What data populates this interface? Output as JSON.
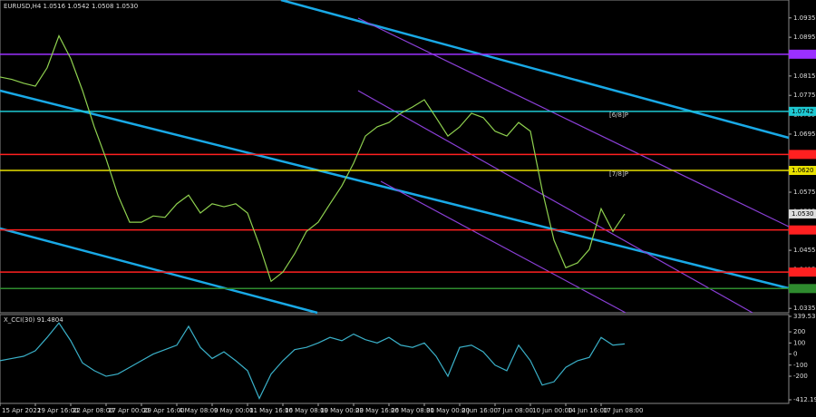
{
  "chart_data": [
    {
      "type": "line",
      "title": "EURUSD,H4  1.0516 1.0542 1.0508 1.0530",
      "categories": [
        "15 Apr 2022",
        null,
        null,
        "19 Apr 16:00",
        null,
        null,
        "22 Apr 08:00",
        null,
        null,
        "27 Apr 00:00",
        null,
        null,
        "29 Apr 16:00",
        null,
        null,
        "4 May 08:00",
        null,
        null,
        "9 May 00:00",
        null,
        null,
        "11 May 16:00",
        null,
        null,
        "16 May 08:00",
        null,
        null,
        "19 May 00:00",
        null,
        null,
        "23 May 16:00",
        null,
        null,
        "26 May 08:00",
        null,
        null,
        "31 May 00:00",
        null,
        null,
        "2 Jun 16:00",
        null,
        null,
        "7 Jun 08:00",
        null,
        null,
        "10 Jun 00:00",
        null,
        null,
        "14 Jun 16:00",
        null,
        null,
        "17 Jun 08:00",
        null,
        null
      ],
      "values": [
        1.0813,
        1.0808,
        1.08,
        1.0794,
        1.0832,
        1.0898,
        1.0851,
        1.0785,
        1.071,
        1.0644,
        1.0569,
        1.0513,
        1.0513,
        1.0526,
        1.0523,
        1.0551,
        1.0569,
        1.0532,
        1.0551,
        1.0545,
        1.0551,
        1.0532,
        1.0466,
        1.0391,
        1.041,
        1.0448,
        1.0494,
        1.0513,
        1.0551,
        1.0588,
        1.0635,
        1.0691,
        1.071,
        1.0719,
        1.0738,
        1.0751,
        1.0766,
        1.0729,
        1.0691,
        1.071,
        1.0738,
        1.0729,
        1.0701,
        1.0691,
        1.0719,
        1.0701,
        1.0579,
        1.0476,
        1.0419,
        1.0429,
        1.0457,
        1.0541,
        1.0494,
        1.053
      ],
      "color": "#8fd14f",
      "ylim": [
        1.0326,
        1.0972
      ],
      "yticks": [
        1.0935,
        1.0895,
        1.0855,
        1.0815,
        1.0775,
        1.0735,
        1.0695,
        1.0655,
        1.0615,
        1.0575,
        1.0535,
        1.0495,
        1.0455,
        1.0415,
        1.0375,
        1.0335
      ],
      "levels": [
        {
          "value": 1.086,
          "color": "#9b30ff"
        },
        {
          "value": 1.0742,
          "color": "#1ec8d2",
          "label": "1.0742"
        },
        {
          "value": 1.0653,
          "color": "#ff2020"
        },
        {
          "value": 1.062,
          "color": "#e8e000",
          "label": "1.0620"
        },
        {
          "value": 1.0497,
          "color": "#ff2020"
        },
        {
          "value": 1.041,
          "color": "#ff2020"
        },
        {
          "value": 1.0376,
          "color": "#2e8b2e"
        }
      ],
      "last_price": {
        "value": 1.053,
        "label": "1.0530"
      },
      "annotations": [
        {
          "text": "[6/8]P",
          "value": 1.0742
        },
        {
          "text": "[7/8]P",
          "value": 1.062
        }
      ]
    },
    {
      "type": "line",
      "title": "X_CCI(30) 91.4804",
      "values": [
        -60,
        -40,
        -20,
        30,
        150,
        280,
        120,
        -80,
        -150,
        -200,
        -180,
        -120,
        -60,
        0,
        40,
        80,
        250,
        60,
        -40,
        20,
        -60,
        -150,
        -400,
        -180,
        -60,
        40,
        60,
        100,
        150,
        120,
        180,
        130,
        100,
        150,
        80,
        60,
        100,
        -20,
        -200,
        60,
        80,
        20,
        -100,
        -150,
        80,
        -60,
        -280,
        -250,
        -120,
        -60,
        -30,
        150,
        80,
        91.4804
      ],
      "color": "#3ab0c8",
      "ylim": [
        -412.1935,
        339.5376
      ],
      "yticks": [
        339.5376,
        200,
        100,
        0,
        -100,
        -200,
        -412.1935
      ]
    }
  ]
}
